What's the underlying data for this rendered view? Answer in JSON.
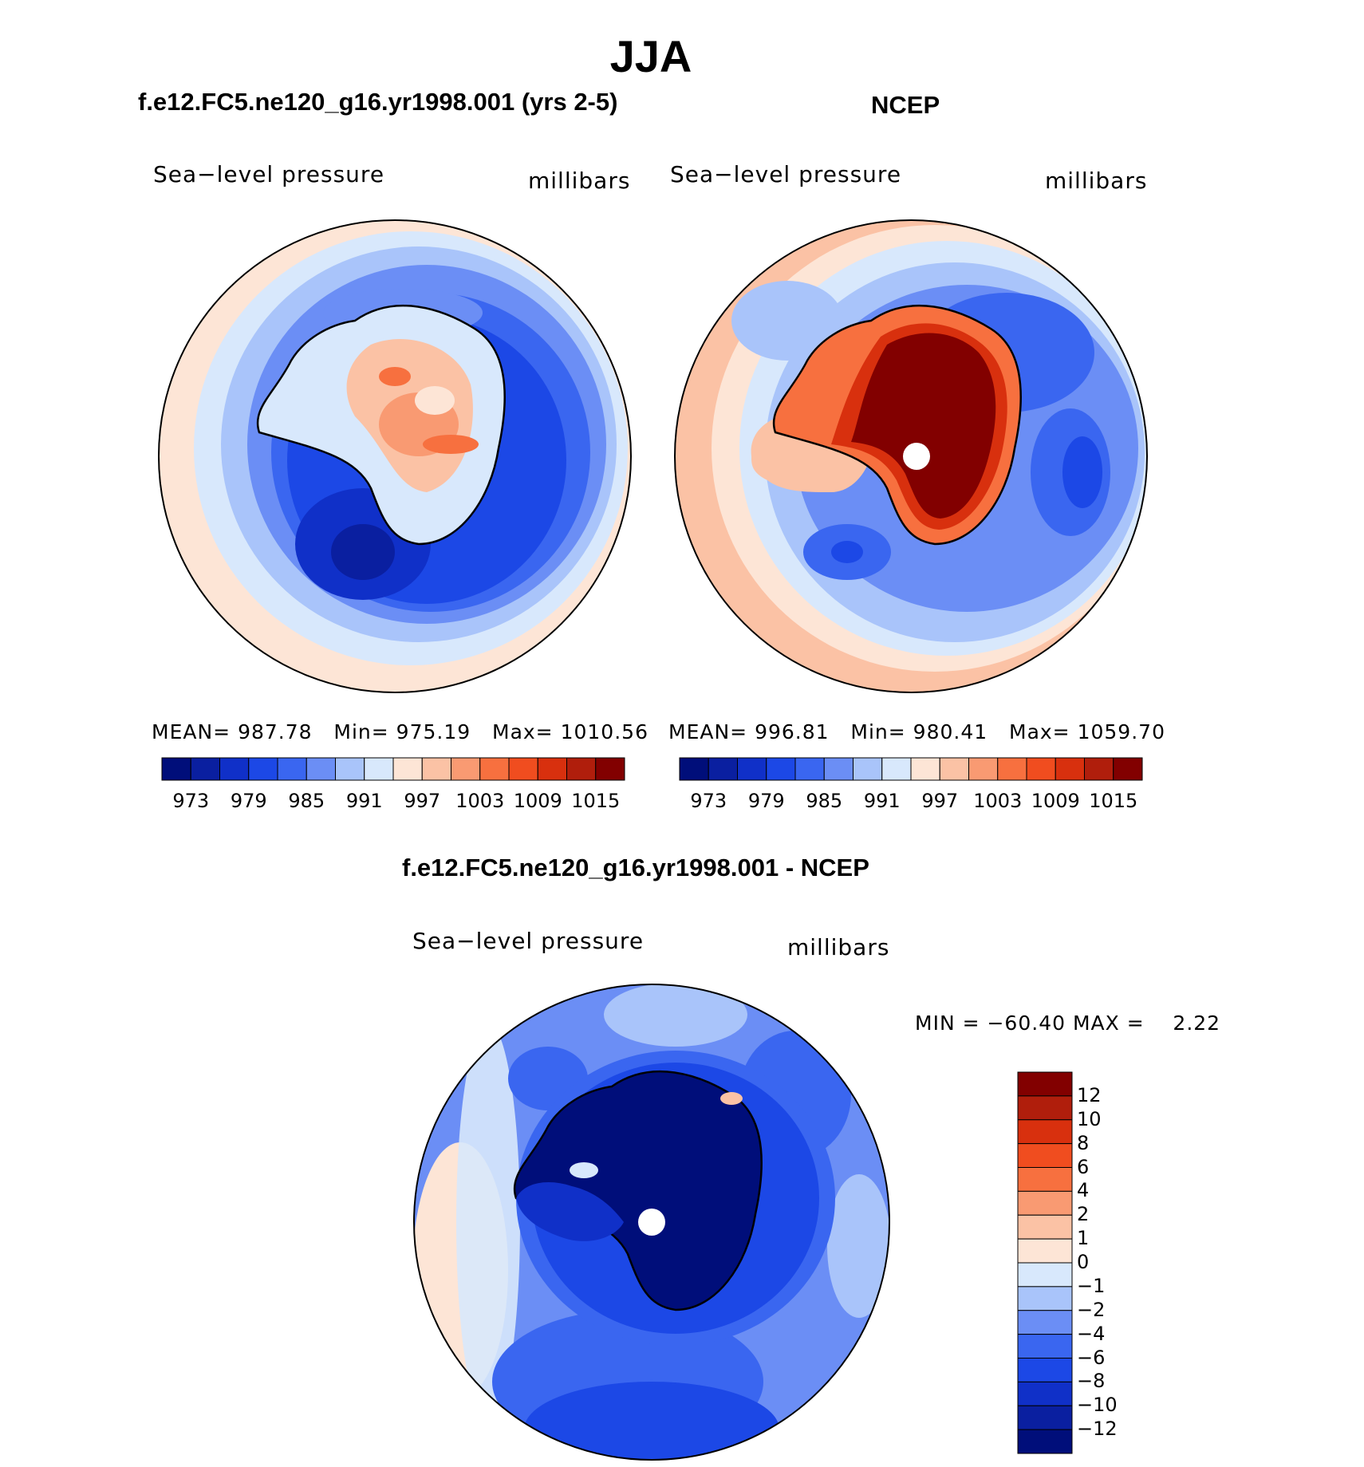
{
  "title": "JJA",
  "panels": [
    {
      "title": "f.e12.FC5.ne120_g16.yr1998.001 (yrs 2-5)",
      "variable": "Sea−level pressure",
      "units": "millibars",
      "stats": {
        "mean_label": "MEAN=",
        "mean": "987.78",
        "min_label": "Min=",
        "min": "975.19",
        "max_label": "Max=",
        "max": "1010.56"
      },
      "colorbar_ticks": [
        "973",
        "979",
        "985",
        "991",
        "997",
        "1003",
        "1009",
        "1015"
      ]
    },
    {
      "title": "NCEP",
      "variable": "Sea−level pressure",
      "units": "millibars",
      "stats": {
        "mean_label": "MEAN=",
        "mean": "996.81",
        "min_label": "Min=",
        "min": "980.41",
        "max_label": "Max=",
        "max": "1059.70"
      },
      "colorbar_ticks": [
        "973",
        "979",
        "985",
        "991",
        "997",
        "1003",
        "1009",
        "1015"
      ]
    }
  ],
  "difference_panel": {
    "title": "f.e12.FC5.ne120_g16.yr1998.001 - NCEP",
    "variable": "Sea−level pressure",
    "units": "millibars",
    "stats_text": "MIN = −60.40 MAX =    2.22",
    "colorbar_ticks": [
      "12",
      "10",
      "8",
      "6",
      "4",
      "2",
      "1",
      "0",
      "−1",
      "−2",
      "−4",
      "−6",
      "−8",
      "−10",
      "−12"
    ]
  },
  "colors": {
    "abs_scale": [
      "#000e7a",
      "#0a1fa0",
      "#1030c8",
      "#1c48e6",
      "#3a66f0",
      "#6b8ef5",
      "#a9c4fa",
      "#d8e8fc",
      "#fde5d6",
      "#fbc2a5",
      "#f99a72",
      "#f7703f",
      "#f04d1f",
      "#d8300e",
      "#b01e0c",
      "#820000"
    ],
    "diff_scale": [
      "#820000",
      "#b01e0c",
      "#d8300e",
      "#f04d1f",
      "#f7703f",
      "#f99a72",
      "#fbc2a5",
      "#fde5d6",
      "#d8e8fc",
      "#a9c4fa",
      "#6b8ef5",
      "#3a66f0",
      "#1c48e6",
      "#1030c8",
      "#0a1fa0",
      "#000e7a"
    ]
  }
}
